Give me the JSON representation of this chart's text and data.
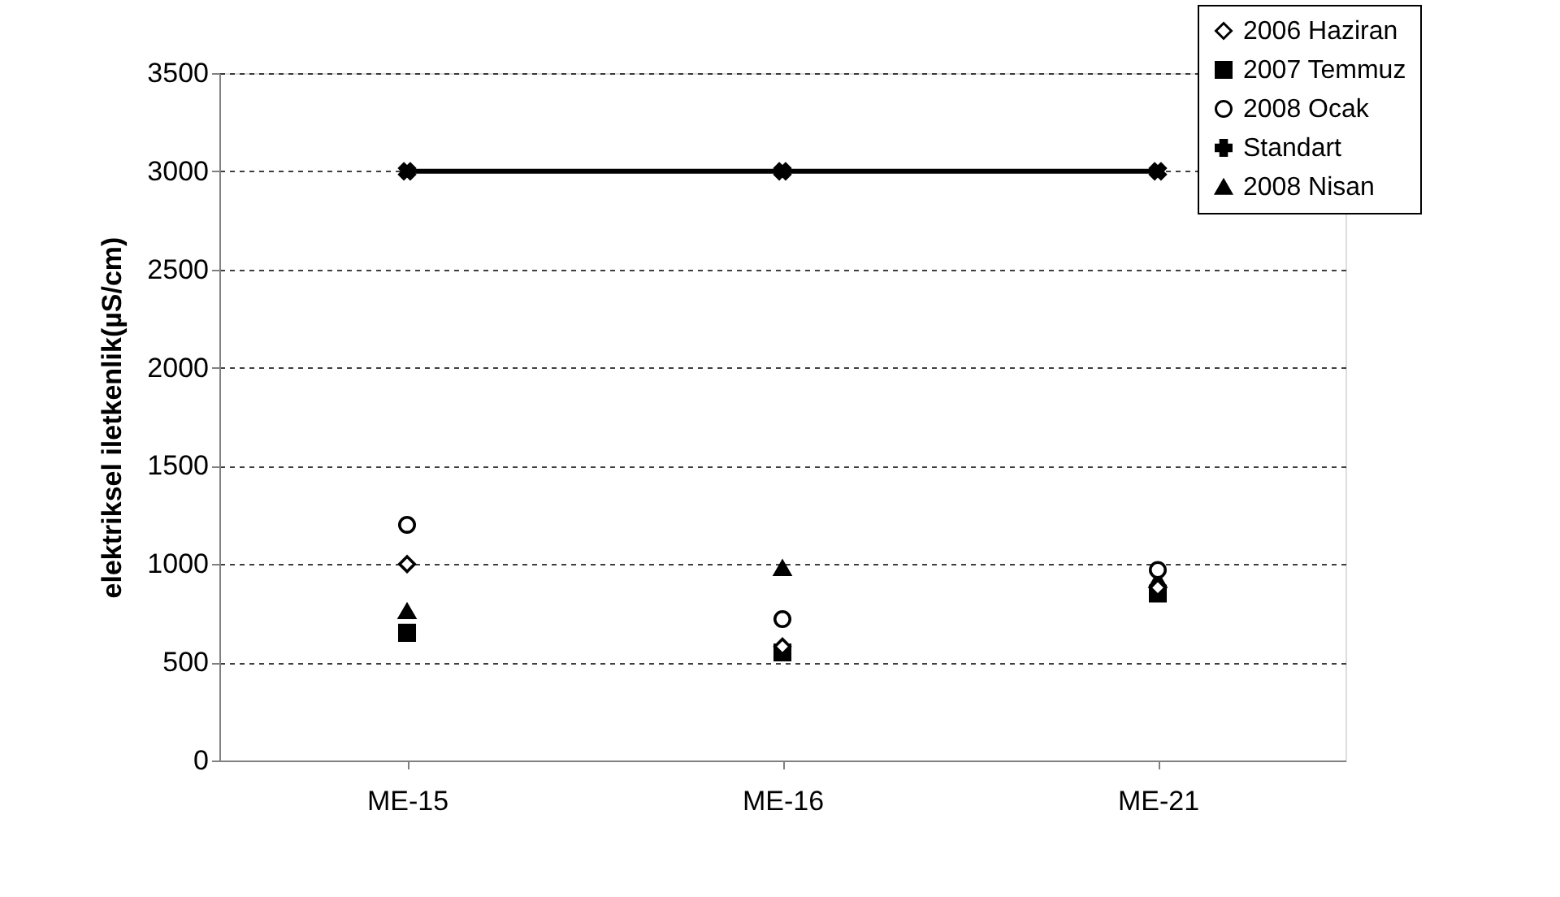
{
  "chart_data": {
    "type": "scatter",
    "ylabel": "elektriksel iletkenlik(µS/cm)",
    "categories": [
      "ME-15",
      "ME-16",
      "ME-21"
    ],
    "series": [
      {
        "name": "2006 Haziran",
        "color": "#000000",
        "marker": "diamond",
        "values": [
          1000,
          580,
          880
        ]
      },
      {
        "name": "2007 Temmuz",
        "color": "#000000",
        "marker": "square",
        "values": [
          650,
          550,
          850
        ]
      },
      {
        "name": "2008 Ocak",
        "color": "#000000",
        "marker": "circle",
        "values": [
          1200,
          720,
          970
        ]
      },
      {
        "name": "Standart",
        "color": "#000000",
        "type": "line",
        "marker": "cross",
        "line_style": "solid",
        "values": [
          3000,
          3000,
          3000
        ]
      },
      {
        "name": "2008 Nisan",
        "color": "#000000",
        "marker": "triangle",
        "values": [
          760,
          980,
          920
        ]
      }
    ],
    "ylim": [
      0,
      3500
    ],
    "yticks": [
      0,
      500,
      1000,
      1500,
      2000,
      2500,
      3000,
      3500
    ],
    "grid": "y",
    "legend": "top right"
  }
}
